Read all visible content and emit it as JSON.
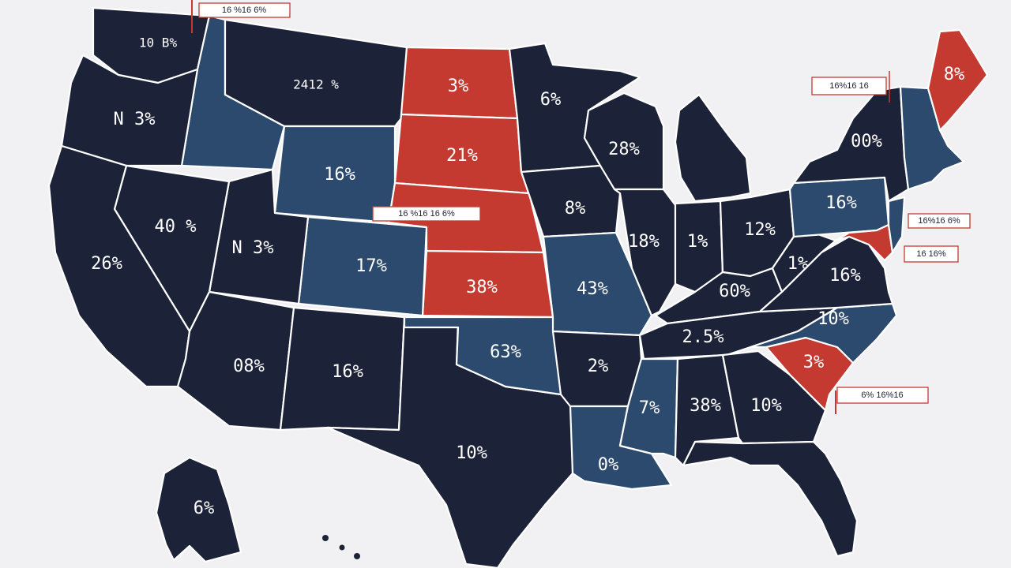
{
  "colors": {
    "background": "#f1f1f3",
    "dark": "#1c2237",
    "blue": "#2c4a6d",
    "red": "#c43a31"
  },
  "states": [
    {
      "id": "WA",
      "label": "10 B%",
      "fill": "dark"
    },
    {
      "id": "ID",
      "label": "",
      "fill": "blue"
    },
    {
      "id": "OR",
      "label": "N 3%",
      "fill": "dark"
    },
    {
      "id": "MT",
      "label": "2412 %",
      "fill": "dark"
    },
    {
      "id": "ND",
      "label": "3%",
      "fill": "red"
    },
    {
      "id": "SD",
      "label": "21%",
      "fill": "red"
    },
    {
      "id": "WY",
      "label": "16%",
      "fill": "blue"
    },
    {
      "id": "NE",
      "label": "",
      "fill": "red"
    },
    {
      "id": "KS",
      "label": "38%",
      "fill": "red"
    },
    {
      "id": "CO",
      "label": "17%",
      "fill": "blue"
    },
    {
      "id": "UT",
      "label": "N 3%",
      "fill": "dark"
    },
    {
      "id": "NV",
      "label": "40 %",
      "fill": "dark"
    },
    {
      "id": "CA",
      "label": "26%",
      "fill": "dark"
    },
    {
      "id": "AZ",
      "label": "08%",
      "fill": "dark"
    },
    {
      "id": "NM",
      "label": "16%",
      "fill": "dark"
    },
    {
      "id": "TX",
      "label": "10%",
      "fill": "dark"
    },
    {
      "id": "OK",
      "label": "63%",
      "fill": "blue"
    },
    {
      "id": "MN",
      "label": "6%",
      "fill": "dark"
    },
    {
      "id": "IA",
      "label": "8%",
      "fill": "dark"
    },
    {
      "id": "MO",
      "label": "43%",
      "fill": "blue"
    },
    {
      "id": "AR",
      "label": "2%",
      "fill": "dark"
    },
    {
      "id": "LA",
      "label": "0%",
      "fill": "blue"
    },
    {
      "id": "WI",
      "label": "28%",
      "fill": "dark"
    },
    {
      "id": "IL",
      "label": "18%",
      "fill": "dark"
    },
    {
      "id": "MI",
      "label": "",
      "fill": "dark"
    },
    {
      "id": "IN",
      "label": "1%",
      "fill": "dark"
    },
    {
      "id": "OH",
      "label": "12%",
      "fill": "dark"
    },
    {
      "id": "KY",
      "label": "60%",
      "fill": "dark"
    },
    {
      "id": "TN",
      "label": "2.5%",
      "fill": "dark"
    },
    {
      "id": "MS",
      "label": "7%",
      "fill": "blue"
    },
    {
      "id": "AL",
      "label": "38%",
      "fill": "dark"
    },
    {
      "id": "GA",
      "label": "10%",
      "fill": "dark"
    },
    {
      "id": "FL",
      "label": "",
      "fill": "dark"
    },
    {
      "id": "SC",
      "label": "3%",
      "fill": "red"
    },
    {
      "id": "NC",
      "label": "10%",
      "fill": "blue"
    },
    {
      "id": "VA",
      "label": "16%",
      "fill": "dark"
    },
    {
      "id": "WV",
      "label": "1%",
      "fill": "dark"
    },
    {
      "id": "PA",
      "label": "16%",
      "fill": "blue"
    },
    {
      "id": "NY",
      "label": "00%",
      "fill": "dark"
    },
    {
      "id": "MD",
      "label": "",
      "fill": "red"
    },
    {
      "id": "NJ",
      "label": "",
      "fill": "blue"
    },
    {
      "id": "NEW_ENG",
      "label": "",
      "fill": "blue"
    },
    {
      "id": "ME",
      "label": "8%",
      "fill": "red"
    },
    {
      "id": "AK",
      "label": "6%",
      "fill": "dark"
    }
  ],
  "callouts": {
    "top": "16  %16 6%",
    "mid": "16 %16 16 6%",
    "ne": "16%16 16",
    "right1": "16%16 6%",
    "right2": "16 16%",
    "se": "6% 16%16"
  }
}
